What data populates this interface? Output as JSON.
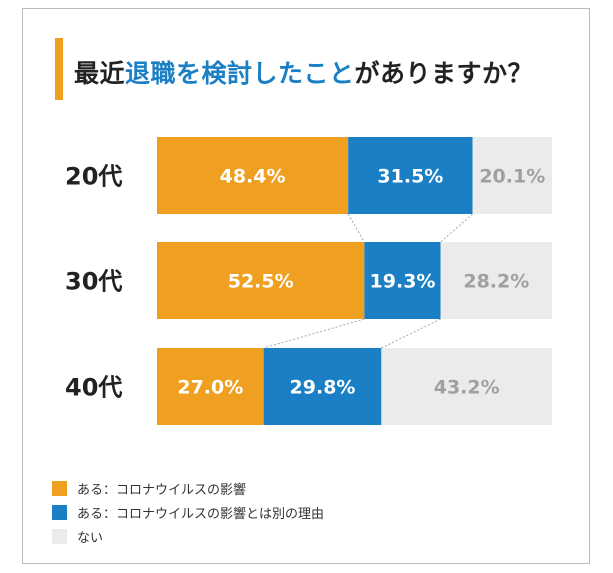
{
  "chart_data": {
    "type": "bar",
    "stacked": true,
    "orientation": "horizontal",
    "title_parts": [
      "最近",
      "退職を検討したこと",
      "がありますか？"
    ],
    "categories": [
      "20代",
      "30代",
      "40代"
    ],
    "series": [
      {
        "name": "ある：コロナウイルスの影響",
        "color": "#f0a020",
        "label_color": "#ffffff",
        "values": [
          48.4,
          52.5,
          27.0
        ]
      },
      {
        "name": "ある：コロナウイルスの影響とは別の理由",
        "color": "#1a7fc4",
        "label_color": "#ffffff",
        "values": [
          31.5,
          19.3,
          29.8
        ]
      },
      {
        "name": "ない",
        "color": "#ebebeb",
        "label_color": "#a0a0a0",
        "values": [
          20.1,
          28.2,
          43.2
        ]
      }
    ],
    "unit": "%",
    "xlim": [
      0,
      100
    ],
    "legend_position": "bottom-left"
  }
}
